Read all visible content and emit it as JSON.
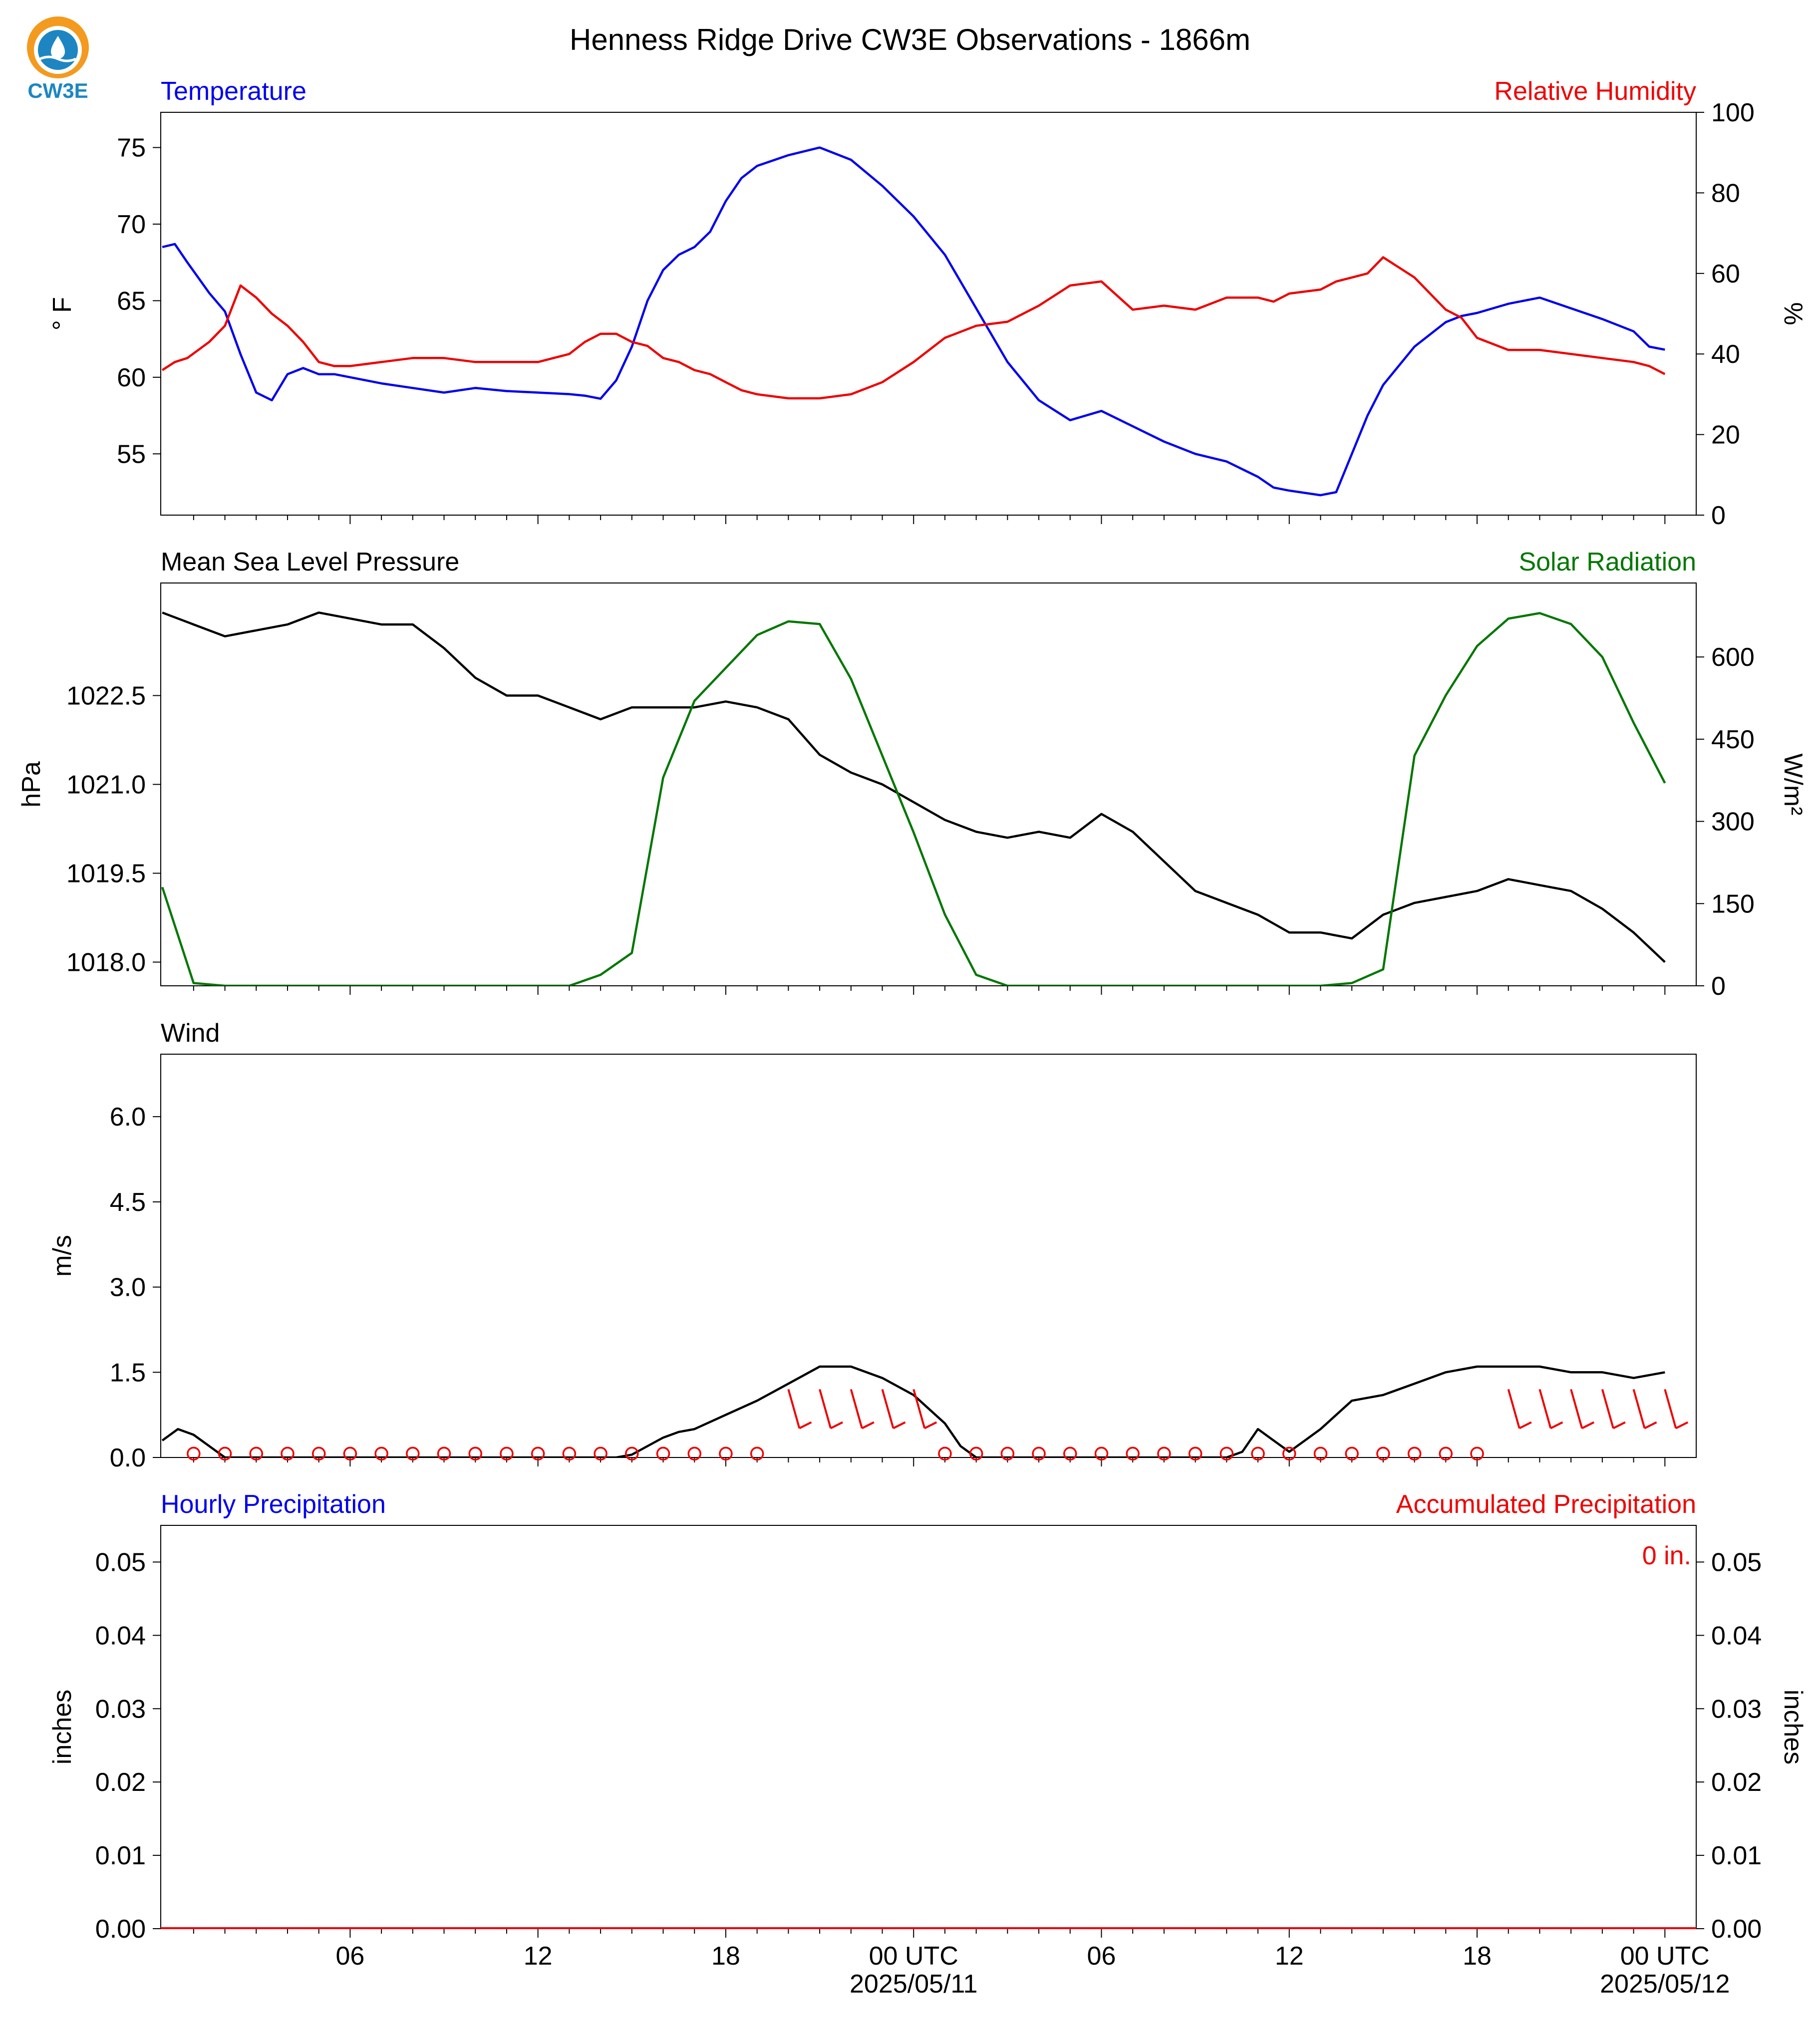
{
  "title": "Henness Ridge Drive CW3E Observations - 1866m",
  "logo": {
    "text": "CW3E"
  },
  "colors": {
    "temperature": "#0000ee",
    "humidity": "#ee0000",
    "pressure": "#000000",
    "solar": "#007700",
    "wind": "#000000",
    "barbs": "#ee0000",
    "precip_hourly": "#0000ee",
    "precip_accum": "#ee0000"
  },
  "time_axis": {
    "tick_labels": [
      "06",
      "12",
      "18",
      "00 UTC",
      "06",
      "12",
      "18",
      "00 UTC"
    ],
    "tick_hours": [
      6,
      12,
      18,
      24,
      30,
      36,
      42,
      48
    ],
    "dates": [
      "2025/05/11",
      "2025/05/12"
    ],
    "range_hours": [
      -0.05,
      49
    ]
  },
  "chart_data": [
    {
      "type": "line",
      "panel": "temperature-humidity",
      "left_title": "Temperature",
      "right_title": "Relative Humidity",
      "ylabel_left": "° F",
      "ylabel_right": "%",
      "ylim_left": [
        51,
        77.3
      ],
      "ylim_right": [
        0,
        100
      ],
      "yticks_left": [
        "55",
        "60",
        "65",
        "70",
        "75"
      ],
      "yticks_right": [
        "0",
        "20",
        "40",
        "60",
        "80",
        "100"
      ],
      "x_hours": [
        0,
        0.4,
        0.8,
        1.5,
        2.0,
        2.5,
        3.0,
        3.5,
        4.0,
        4.5,
        5.0,
        5.5,
        6,
        7,
        8,
        9,
        10,
        11,
        12,
        13,
        13.5,
        14,
        14.5,
        15,
        15.5,
        16,
        16.5,
        17,
        17.5,
        18,
        18.5,
        19,
        20,
        21,
        22,
        23,
        24,
        25,
        26,
        27,
        28,
        29,
        30,
        31,
        32,
        33,
        34,
        35,
        35.5,
        36,
        37,
        37.5,
        38,
        38.5,
        39,
        40,
        41,
        41.5,
        42,
        43,
        44,
        45,
        46,
        47,
        47.5,
        48
      ],
      "series": [
        {
          "name": "Temperature",
          "axis": "left",
          "values": [
            68.5,
            68.7,
            67.5,
            65.5,
            64.3,
            61.5,
            59.0,
            58.5,
            60.2,
            60.6,
            60.2,
            60.2,
            60.0,
            59.6,
            59.3,
            59.0,
            59.3,
            59.1,
            59.0,
            58.9,
            58.8,
            58.6,
            59.8,
            62.0,
            65.0,
            67.0,
            68.0,
            68.5,
            69.5,
            71.5,
            73.0,
            73.8,
            74.5,
            75.0,
            74.2,
            72.5,
            70.5,
            68.0,
            64.5,
            61.0,
            58.5,
            57.2,
            57.8,
            56.8,
            55.8,
            55.0,
            54.5,
            53.5,
            52.8,
            52.6,
            52.3,
            52.5,
            55.0,
            57.5,
            59.5,
            62.0,
            63.6,
            64.0,
            64.2,
            64.8,
            65.2,
            64.5,
            63.8,
            63.0,
            62.0,
            61.8
          ]
        },
        {
          "name": "Relative Humidity",
          "axis": "right",
          "values": [
            36,
            38,
            39,
            43,
            47,
            57,
            54,
            50,
            47,
            43,
            38,
            37,
            37,
            38,
            39,
            39,
            38,
            38,
            38,
            40,
            43,
            45,
            45,
            43,
            42,
            39,
            38,
            36,
            35,
            33,
            31,
            30,
            29,
            29,
            30,
            33,
            38,
            44,
            47,
            48,
            52,
            57,
            58,
            51,
            52,
            51,
            54,
            54,
            53,
            55,
            56,
            58,
            59,
            60,
            64,
            59,
            51,
            49,
            44,
            41,
            41,
            40,
            39,
            38,
            37,
            35
          ]
        }
      ]
    },
    {
      "type": "line",
      "panel": "pressure-solar",
      "left_title": "Mean Sea Level Pressure",
      "right_title": "Solar Radiation",
      "ylabel_left": "hPa",
      "ylabel_right": "W/m²",
      "ylim_left": [
        1017.6,
        1024.4
      ],
      "ylim_right": [
        0,
        735
      ],
      "yticks_left": [
        "1018.0",
        "1019.5",
        "1021.0",
        "1022.5"
      ],
      "yticks_right": [
        "0",
        "150",
        "300",
        "450",
        "600"
      ],
      "x_hours": [
        0,
        1,
        2,
        3,
        4,
        5,
        6,
        7,
        8,
        9,
        10,
        11,
        12,
        13,
        14,
        15,
        16,
        17,
        18,
        19,
        20,
        21,
        22,
        23,
        24,
        25,
        26,
        27,
        28,
        29,
        30,
        31,
        32,
        33,
        34,
        35,
        36,
        37,
        38,
        39,
        40,
        41,
        42,
        43,
        44,
        45,
        46,
        47,
        48
      ],
      "series": [
        {
          "name": "Mean Sea Level Pressure",
          "axis": "left",
          "values": [
            1023.9,
            1023.7,
            1023.5,
            1023.6,
            1023.7,
            1023.9,
            1023.8,
            1023.7,
            1023.7,
            1023.3,
            1022.8,
            1022.5,
            1022.5,
            1022.3,
            1022.1,
            1022.3,
            1022.3,
            1022.3,
            1022.4,
            1022.3,
            1022.1,
            1021.5,
            1021.2,
            1021.0,
            1020.7,
            1020.4,
            1020.2,
            1020.1,
            1020.2,
            1020.1,
            1020.5,
            1020.2,
            1019.7,
            1019.2,
            1019.0,
            1018.8,
            1018.5,
            1018.5,
            1018.4,
            1018.8,
            1019.0,
            1019.1,
            1019.2,
            1019.4,
            1019.3,
            1019.2,
            1018.9,
            1018.5,
            1018.0
          ]
        },
        {
          "name": "Solar Radiation",
          "axis": "right",
          "values": [
            180,
            5,
            0,
            0,
            0,
            0,
            0,
            0,
            0,
            0,
            0,
            0,
            0,
            0,
            20,
            60,
            380,
            520,
            580,
            640,
            665,
            660,
            560,
            420,
            280,
            130,
            20,
            0,
            0,
            0,
            0,
            0,
            0,
            0,
            0,
            0,
            0,
            0,
            5,
            30,
            420,
            530,
            620,
            670,
            680,
            660,
            600,
            480,
            370
          ]
        }
      ]
    },
    {
      "type": "line",
      "panel": "wind",
      "left_title": "Wind",
      "ylabel_left": "m/s",
      "ylim_left": [
        0,
        7.1
      ],
      "yticks_left": [
        "0.0",
        "1.5",
        "3.0",
        "4.5",
        "6.0"
      ],
      "x_hours": [
        0,
        0.5,
        1,
        1.5,
        2,
        3,
        4,
        5,
        6,
        7,
        8,
        9,
        10,
        11,
        12,
        13,
        14,
        14.5,
        15,
        15.5,
        16,
        16.5,
        17,
        18,
        19,
        20,
        21,
        22,
        23,
        24,
        25,
        25.5,
        26,
        27,
        28,
        29,
        30,
        31,
        32,
        33,
        34,
        34.5,
        35,
        35.5,
        36,
        36.5,
        37,
        38,
        39,
        40,
        41,
        42,
        43,
        44,
        45,
        46,
        47,
        48
      ],
      "series": [
        {
          "name": "Wind speed",
          "values": [
            0.3,
            0.5,
            0.4,
            0.2,
            0.0,
            0.0,
            0.0,
            0.0,
            0.0,
            0.0,
            0.0,
            0.0,
            0.0,
            0.0,
            0.0,
            0.0,
            0.0,
            0.0,
            0.05,
            0.2,
            0.35,
            0.45,
            0.5,
            0.75,
            1.0,
            1.3,
            1.6,
            1.6,
            1.4,
            1.1,
            0.6,
            0.2,
            0.0,
            0.0,
            0.0,
            0.0,
            0.0,
            0.0,
            0.0,
            0.0,
            0.0,
            0.1,
            0.5,
            0.3,
            0.1,
            0.3,
            0.5,
            1.0,
            1.1,
            1.3,
            1.5,
            1.6,
            1.6,
            1.6,
            1.5,
            1.5,
            1.4,
            1.5
          ]
        }
      ]
    },
    {
      "type": "bar",
      "panel": "precipitation",
      "left_title": "Hourly Precipitation",
      "right_title": "Accumulated Precipitation",
      "ylabel_left": "inches",
      "ylabel_right": "inches",
      "ylim_left": [
        0,
        0.055
      ],
      "ylim_right": [
        0,
        0.055
      ],
      "yticks_left": [
        "0.00",
        "0.01",
        "0.02",
        "0.03",
        "0.04",
        "0.05"
      ],
      "yticks_right": [
        "0.00",
        "0.01",
        "0.02",
        "0.03",
        "0.04",
        "0.05"
      ],
      "annotation": "0 in.",
      "values": [
        0
      ]
    }
  ],
  "wind_symbols": {
    "calm_hours": [
      1,
      2,
      3,
      4,
      5,
      6,
      7,
      8,
      9,
      10,
      11,
      12,
      13,
      14,
      15,
      16,
      17,
      18,
      19,
      25,
      26,
      27,
      28,
      29,
      30,
      31,
      32,
      33,
      34,
      35,
      36,
      37,
      38,
      39,
      40,
      41,
      42
    ],
    "barb_hours": [
      20,
      21,
      22,
      23,
      24,
      43,
      44,
      45,
      46,
      47,
      48
    ]
  }
}
